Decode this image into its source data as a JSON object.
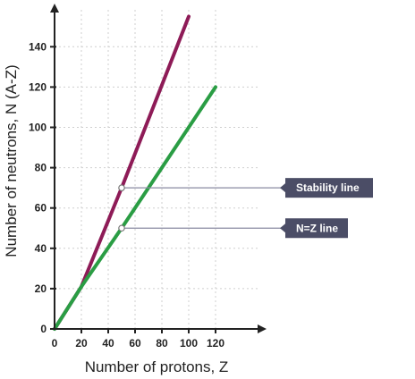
{
  "chart_data": {
    "type": "line",
    "xlabel": "Number of protons, Z",
    "ylabel": "Number of neutrons, N (A-Z)",
    "xlim": [
      0,
      140
    ],
    "ylim": [
      0,
      160
    ],
    "x_ticks": [
      0,
      20,
      40,
      60,
      80,
      100,
      120
    ],
    "y_ticks": [
      0,
      20,
      40,
      60,
      80,
      100,
      120,
      140
    ],
    "grid": true,
    "series": [
      {
        "color": "#8e1b57",
        "points": [
          [
            0,
            0
          ],
          [
            20,
            21
          ],
          [
            50,
            70
          ],
          [
            100,
            155
          ]
        ]
      },
      {
        "color": "#2a9d44",
        "points": [
          [
            0,
            0
          ],
          [
            20,
            21
          ],
          [
            50,
            50
          ],
          [
            120,
            120
          ]
        ]
      }
    ],
    "annotations": [
      {
        "label": "Stability line",
        "anchor": [
          50,
          70
        ]
      },
      {
        "label": "N=Z line",
        "anchor": [
          50,
          50
        ]
      }
    ],
    "callout_color": "#4b4d66"
  }
}
